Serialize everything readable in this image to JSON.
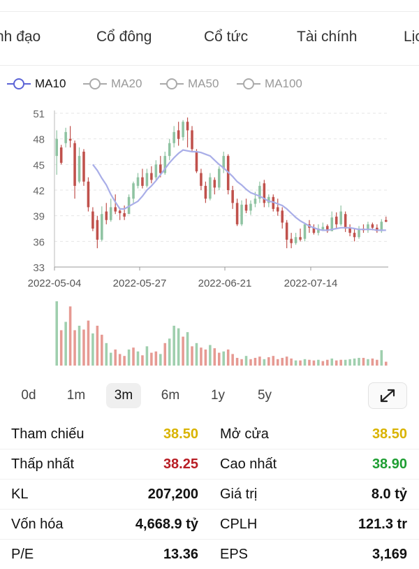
{
  "tabs": [
    "nh đạo",
    "Cổ đông",
    "Cổ tức",
    "Tài chính",
    "Lịc"
  ],
  "ma_legend": [
    {
      "label": "MA10",
      "active": true
    },
    {
      "label": "MA20",
      "active": false
    },
    {
      "label": "MA50",
      "active": false
    },
    {
      "label": "MA100",
      "active": false
    }
  ],
  "colors": {
    "up": "#8fc3a2",
    "down": "#c0514c",
    "ma": "#a9aee8",
    "volume_up": "#9fcfae",
    "volume_down": "#e69a93"
  },
  "chart_data": {
    "type": "candlestick",
    "y_ticks": [
      "51",
      "48",
      "45",
      "42",
      "39",
      "36",
      "33"
    ],
    "ylim": [
      33,
      51
    ],
    "x_ticks": [
      "2022-05-04",
      "2022-05-27",
      "2022-06-21",
      "2022-07-14"
    ],
    "candles": [
      [
        46,
        48,
        49,
        43.8
      ],
      [
        47,
        45.2,
        47.3,
        45
      ],
      [
        47.5,
        48.8,
        49.3,
        47
      ],
      [
        48,
        47.8,
        49.5,
        47
      ],
      [
        47.5,
        42.5,
        47.8,
        41
      ],
      [
        43,
        46,
        47,
        42.8
      ],
      [
        46.5,
        43,
        46.8,
        42.5
      ],
      [
        43,
        40,
        43.5,
        39.5
      ],
      [
        39.5,
        37.5,
        40,
        37.2
      ],
      [
        38.5,
        36.2,
        39,
        35.2
      ],
      [
        36.2,
        39.2,
        40.1,
        36
      ],
      [
        39.5,
        38.5,
        40.5,
        38
      ],
      [
        38.5,
        40,
        41,
        38.3
      ],
      [
        40,
        39.5,
        41.5,
        39.2
      ],
      [
        39.6,
        39.3,
        39.8,
        38.5
      ],
      [
        39.3,
        38.9,
        40.2,
        38.5
      ],
      [
        39.2,
        41.2,
        41.5,
        39.2
      ],
      [
        41,
        42.8,
        43,
        40.5
      ],
      [
        42.5,
        43.5,
        44,
        42.2
      ],
      [
        43.5,
        42.5,
        44.5,
        42.2
      ],
      [
        42.5,
        44,
        44.5,
        42.3
      ],
      [
        44,
        43.2,
        44.8,
        42.8
      ],
      [
        43.5,
        45,
        45.5,
        43.2
      ],
      [
        45,
        44,
        46,
        43.5
      ],
      [
        44,
        46,
        46.5,
        43.8
      ],
      [
        46,
        47.5,
        48,
        45.5
      ],
      [
        47.5,
        48.8,
        49.5,
        47
      ],
      [
        49,
        48,
        50,
        47.2
      ],
      [
        48.2,
        50,
        50.2,
        47.8
      ],
      [
        50,
        49,
        50.5,
        47
      ],
      [
        49,
        46.8,
        49.5,
        46.5
      ],
      [
        46.5,
        44.2,
        46.8,
        44
      ],
      [
        44,
        42.5,
        44.5,
        42
      ],
      [
        42.5,
        41,
        43,
        40.5
      ],
      [
        41,
        43.5,
        44,
        40.8
      ],
      [
        43.2,
        42.3,
        43.5,
        41.5
      ],
      [
        42.3,
        44.5,
        44.8,
        42
      ],
      [
        44.5,
        46,
        46.5,
        44
      ],
      [
        46,
        42,
        46.2,
        41.5
      ],
      [
        42,
        40.5,
        42.5,
        39.8
      ],
      [
        40.5,
        38,
        41,
        37.8
      ],
      [
        38,
        40.3,
        40.8,
        37.8
      ],
      [
        40.3,
        39.6,
        41,
        39.3
      ],
      [
        39.6,
        40.4,
        40.8,
        39.1
      ],
      [
        40.4,
        41,
        41.8,
        40
      ],
      [
        41,
        42.5,
        43,
        40.5
      ],
      [
        42.8,
        40.5,
        43.2,
        40
      ],
      [
        40.5,
        41.2,
        41.5,
        40
      ],
      [
        41.2,
        39.8,
        41.5,
        39.5
      ],
      [
        40,
        39.5,
        41,
        39
      ],
      [
        39.6,
        38.2,
        40,
        37.5
      ],
      [
        38.2,
        36.2,
        38.5,
        35.2
      ],
      [
        36.3,
        35.8,
        37,
        35.2
      ],
      [
        35.8,
        36.5,
        37,
        35.6
      ],
      [
        36.5,
        36.2,
        37.5,
        36
      ],
      [
        36.3,
        38,
        38.2,
        36
      ],
      [
        38,
        37.6,
        38.5,
        37
      ],
      [
        37.6,
        37,
        38,
        36.8
      ],
      [
        37,
        37.5,
        38,
        36.7
      ],
      [
        37.4,
        37.7,
        38.2,
        37.2
      ],
      [
        37.8,
        37.2,
        38,
        37
      ],
      [
        37.2,
        38.8,
        39.5,
        37.2
      ],
      [
        38.9,
        38,
        39.4,
        37.5
      ],
      [
        38,
        39.5,
        40.2,
        37.8
      ],
      [
        39.2,
        37.5,
        39.5,
        37.1
      ],
      [
        37.6,
        37,
        38,
        36.6
      ],
      [
        37,
        36.5,
        37.5,
        36
      ],
      [
        36.5,
        37.5,
        37.8,
        36.3
      ],
      [
        37.5,
        37.3,
        38,
        37
      ],
      [
        37.3,
        38,
        38.3,
        37
      ],
      [
        38,
        37.6,
        38.2,
        37.3
      ],
      [
        37.6,
        37.2,
        38,
        37
      ],
      [
        37.2,
        38.3,
        38.6,
        37
      ],
      [
        38.5,
        38.3,
        38.9,
        38.25
      ]
    ],
    "ma10": [
      null,
      null,
      null,
      null,
      null,
      null,
      null,
      null,
      45,
      44.3,
      43.4,
      42.6,
      41.5,
      40.6,
      39.8,
      39.8,
      40.1,
      40.4,
      40.7,
      41.3,
      42,
      42.5,
      43.1,
      43.8,
      44.5,
      45.2,
      45.8,
      46.3,
      46.7,
      46.6,
      46.5,
      46.5,
      46.4,
      46.2,
      46,
      45.5,
      45,
      44.6,
      44.1,
      43.6,
      43,
      42.6,
      42.1,
      41.7,
      41.5,
      41.3,
      41,
      40.7,
      40.6,
      40.4,
      40.2,
      39.8,
      39.3,
      38.8,
      38.4,
      38.1,
      37.8,
      37.6,
      37.4,
      37.3,
      37.3,
      37.4,
      37.5,
      37.6,
      37.6,
      37.6,
      37.5,
      37.4,
      37.4,
      37.4,
      37.4,
      37.3,
      37.3,
      37.3
    ],
    "volume": [
      [
        100,
        "up"
      ],
      [
        55,
        "down"
      ],
      [
        68,
        "up"
      ],
      [
        92,
        "down"
      ],
      [
        55,
        "down"
      ],
      [
        62,
        "up"
      ],
      [
        56,
        "down"
      ],
      [
        70,
        "down"
      ],
      [
        50,
        "up"
      ],
      [
        62,
        "down"
      ],
      [
        48,
        "down"
      ],
      [
        35,
        "up"
      ],
      [
        20,
        "up"
      ],
      [
        25,
        "down"
      ],
      [
        18,
        "down"
      ],
      [
        15,
        "down"
      ],
      [
        25,
        "up"
      ],
      [
        28,
        "down"
      ],
      [
        22,
        "up"
      ],
      [
        16,
        "down"
      ],
      [
        30,
        "up"
      ],
      [
        20,
        "down"
      ],
      [
        22,
        "down"
      ],
      [
        18,
        "up"
      ],
      [
        35,
        "down"
      ],
      [
        42,
        "up"
      ],
      [
        62,
        "up"
      ],
      [
        58,
        "up"
      ],
      [
        45,
        "down"
      ],
      [
        52,
        "up"
      ],
      [
        30,
        "down"
      ],
      [
        35,
        "up"
      ],
      [
        28,
        "down"
      ],
      [
        25,
        "down"
      ],
      [
        32,
        "up"
      ],
      [
        27,
        "down"
      ],
      [
        20,
        "down"
      ],
      [
        22,
        "up"
      ],
      [
        25,
        "down"
      ],
      [
        18,
        "down"
      ],
      [
        12,
        "down"
      ],
      [
        10,
        "down"
      ],
      [
        15,
        "up"
      ],
      [
        10,
        "down"
      ],
      [
        12,
        "down"
      ],
      [
        14,
        "down"
      ],
      [
        10,
        "up"
      ],
      [
        13,
        "down"
      ],
      [
        15,
        "down"
      ],
      [
        10,
        "down"
      ],
      [
        12,
        "down"
      ],
      [
        14,
        "down"
      ],
      [
        11,
        "down"
      ],
      [
        8,
        "up"
      ],
      [
        8,
        "down"
      ],
      [
        10,
        "up"
      ],
      [
        9,
        "down"
      ],
      [
        8,
        "down"
      ],
      [
        9,
        "up"
      ],
      [
        7,
        "down"
      ],
      [
        9,
        "down"
      ],
      [
        11,
        "up"
      ],
      [
        8,
        "down"
      ],
      [
        9,
        "down"
      ],
      [
        9,
        "up"
      ],
      [
        10,
        "up"
      ],
      [
        11,
        "up"
      ],
      [
        12,
        "up"
      ],
      [
        12,
        "down"
      ],
      [
        10,
        "up"
      ],
      [
        11,
        "down"
      ],
      [
        9,
        "down"
      ],
      [
        24,
        "up"
      ],
      [
        6,
        "down"
      ]
    ]
  },
  "ranges": [
    {
      "label": "0d",
      "active": false
    },
    {
      "label": "1m",
      "active": false
    },
    {
      "label": "3m",
      "active": true
    },
    {
      "label": "6m",
      "active": false
    },
    {
      "label": "1y",
      "active": false
    },
    {
      "label": "5y",
      "active": false
    }
  ],
  "stats": {
    "tham_chieu": {
      "label": "Tham chiếu",
      "value": "38.50"
    },
    "mo_cua": {
      "label": "Mở cửa",
      "value": "38.50"
    },
    "thap_nhat": {
      "label": "Thấp nhất",
      "value": "38.25"
    },
    "cao_nhat": {
      "label": "Cao nhất",
      "value": "38.90"
    },
    "kl": {
      "label": "KL",
      "value": "207,200"
    },
    "gia_tri": {
      "label": "Giá trị",
      "value": "8.0 tỷ"
    },
    "von_hoa": {
      "label": "Vốn hóa",
      "value": "4,668.9 tỷ"
    },
    "cplh": {
      "label": "CPLH",
      "value": "121.3 tr"
    },
    "pe": {
      "label": "P/E",
      "value": "13.36"
    },
    "eps": {
      "label": "EPS",
      "value": "3,169"
    }
  }
}
